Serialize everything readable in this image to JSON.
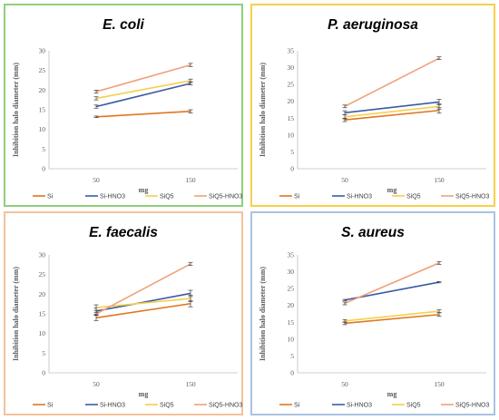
{
  "chart_data": [
    {
      "type": "line",
      "title": "E. coli",
      "xlabel": "mg",
      "ylabel": "Inhibition halo diameter (mm)",
      "x": [
        50,
        150
      ],
      "ylim": [
        0,
        30
      ],
      "yticks": [
        0,
        5,
        10,
        15,
        20,
        25,
        30
      ],
      "grid": false,
      "legend_position": "bottom",
      "border_color": "#8fd07a",
      "series": [
        {
          "name": "Si",
          "values": [
            13.2,
            14.6
          ],
          "err": [
            0.2,
            0.4
          ],
          "color": "#e0761f"
        },
        {
          "name": "Si-HNO3",
          "values": [
            15.8,
            21.7
          ],
          "err": [
            0.4,
            0.4
          ],
          "color": "#3a5ba8"
        },
        {
          "name": "SiQ5",
          "values": [
            17.9,
            22.4
          ],
          "err": [
            0.4,
            0.4
          ],
          "color": "#f7cf4a"
        },
        {
          "name": "SiQ5-HNO3",
          "values": [
            19.6,
            26.4
          ],
          "err": [
            0.4,
            0.4
          ],
          "color": "#f0a07a"
        }
      ]
    },
    {
      "type": "line",
      "title": "P. aeruginosa",
      "xlabel": "mg",
      "ylabel": "Inhibition halo diameter (mm)",
      "x": [
        50,
        150
      ],
      "ylim": [
        0,
        35
      ],
      "yticks": [
        0,
        5,
        10,
        15,
        20,
        25,
        30,
        35
      ],
      "grid": false,
      "legend_position": "bottom",
      "border_color": "#f7cf4a",
      "series": [
        {
          "name": "Si",
          "values": [
            14.5,
            17.3
          ],
          "err": [
            0.5,
            0.8
          ],
          "color": "#e0761f"
        },
        {
          "name": "Si-HNO3",
          "values": [
            16.6,
            19.8
          ],
          "err": [
            0.6,
            0.8
          ],
          "color": "#3a5ba8"
        },
        {
          "name": "SiQ5",
          "values": [
            15.4,
            18.5
          ],
          "err": [
            0.6,
            0.8
          ],
          "color": "#f7cf4a"
        },
        {
          "name": "SiQ5-HNO3",
          "values": [
            18.5,
            32.8
          ],
          "err": [
            0.4,
            0.4
          ],
          "color": "#f0a07a"
        }
      ]
    },
    {
      "type": "line",
      "title": "E. faecalis",
      "xlabel": "mg",
      "ylabel": "Inhibition halo diameter (mm)",
      "x": [
        50,
        150
      ],
      "ylim": [
        0,
        30
      ],
      "yticks": [
        0,
        5,
        10,
        15,
        20,
        25,
        30
      ],
      "grid": false,
      "legend_position": "bottom",
      "border_color": "#f4c29a",
      "series": [
        {
          "name": "Si",
          "values": [
            14.0,
            17.6
          ],
          "err": [
            0.7,
            0.8
          ],
          "color": "#e0761f"
        },
        {
          "name": "Si-HNO3",
          "values": [
            15.7,
            20.2
          ],
          "err": [
            0.8,
            0.8
          ],
          "color": "#3a5ba8"
        },
        {
          "name": "SiQ5",
          "values": [
            16.6,
            18.9
          ],
          "err": [
            0.7,
            0.8
          ],
          "color": "#f7cf4a"
        },
        {
          "name": "SiQ5-HNO3",
          "values": [
            15.0,
            27.7
          ],
          "err": [
            0.4,
            0.4
          ],
          "color": "#f0a07a"
        }
      ]
    },
    {
      "type": "line",
      "title": "S. aureus",
      "xlabel": "mg",
      "ylabel": "Inhibition halo diameter (mm)",
      "x": [
        50,
        150
      ],
      "ylim": [
        0,
        35
      ],
      "yticks": [
        0,
        5,
        10,
        15,
        20,
        25,
        30,
        35
      ],
      "grid": false,
      "legend_position": "bottom",
      "border_color": "#a9c3e3",
      "series": [
        {
          "name": "Si",
          "values": [
            14.7,
            17.3
          ],
          "err": [
            0.4,
            0.5
          ],
          "color": "#e0761f"
        },
        {
          "name": "Si-HNO3",
          "values": [
            21.6,
            26.9
          ],
          "err": [
            0.2,
            0.2
          ],
          "color": "#3a5ba8"
        },
        {
          "name": "SiQ5",
          "values": [
            15.4,
            18.3
          ],
          "err": [
            0.4,
            0.4
          ],
          "color": "#f7cf4a"
        },
        {
          "name": "SiQ5-HNO3",
          "values": [
            20.6,
            32.6
          ],
          "err": [
            0.4,
            0.4
          ],
          "color": "#f0a07a"
        }
      ]
    }
  ]
}
